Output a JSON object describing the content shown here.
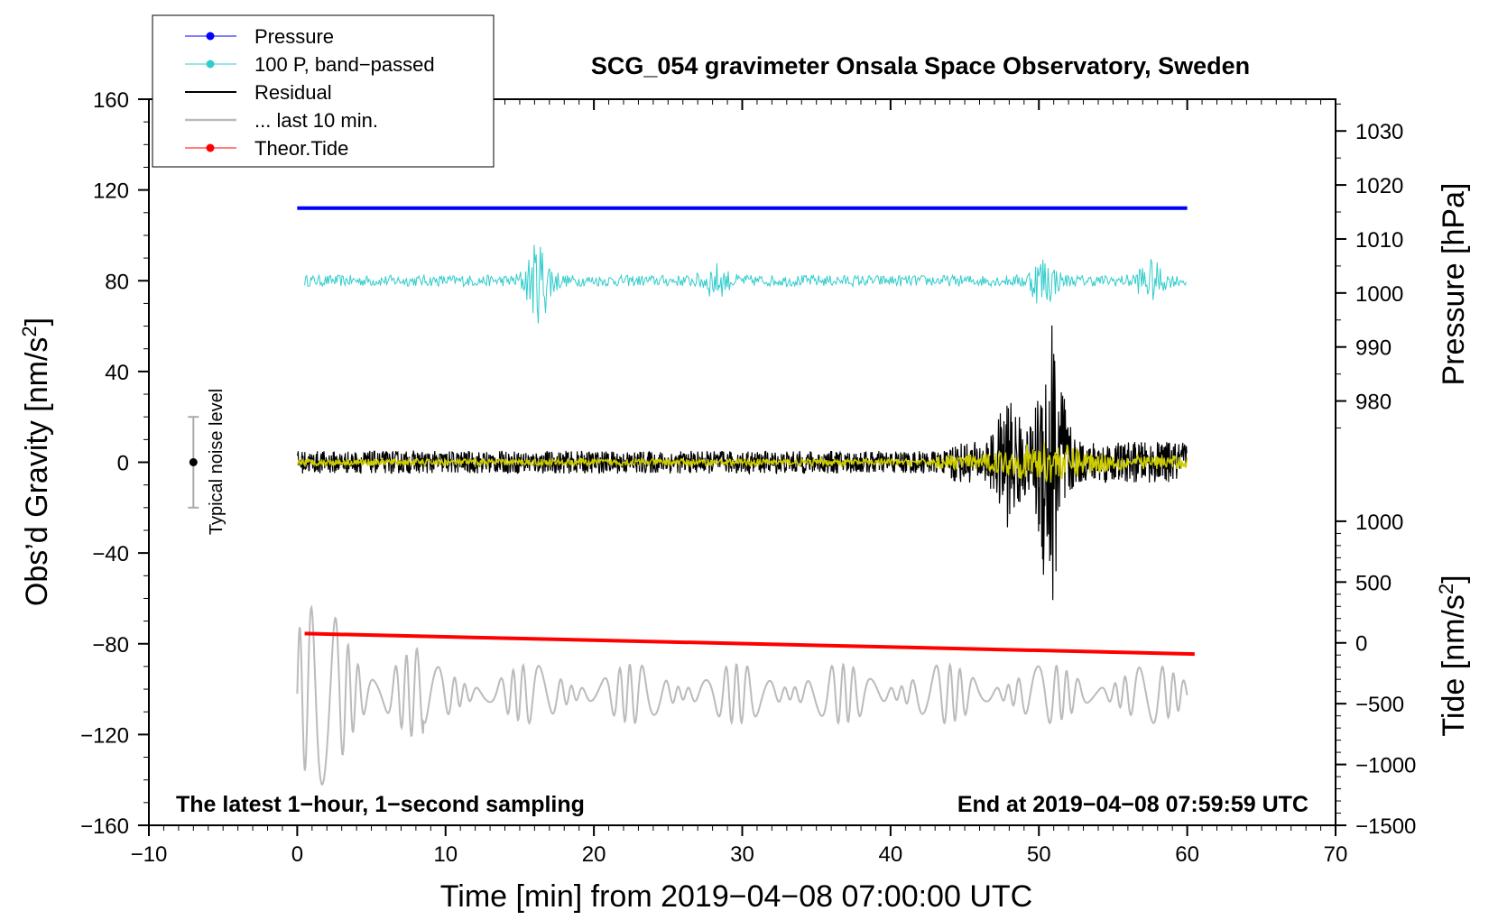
{
  "chart_data": {
    "type": "line",
    "title": "SCG_054 gravimeter Onsala Space Observatory, Sweden",
    "xlabel": "Time [min] from 2019−04−08 07:00:00 UTC",
    "ylabel_left": "Obs’d Gravity [nm/s",
    "ylabel_left_sup": "2",
    "ylabel_left_end": "]",
    "ylabel_pressure": "Pressure [hPa]",
    "ylabel_tide": "Tide [nm/s",
    "ylabel_tide_sup": "2",
    "ylabel_tide_end": "]",
    "xlim": [
      -10,
      70
    ],
    "ylim": [
      -160,
      160
    ],
    "x_ticks": [
      "−10",
      "0",
      "10",
      "20",
      "30",
      "40",
      "50",
      "60",
      "70"
    ],
    "x_tick_values": [
      -10,
      0,
      10,
      20,
      30,
      40,
      50,
      60,
      70
    ],
    "y_ticks": [
      "160",
      "120",
      "80",
      "40",
      "0",
      "−40",
      "−80",
      "−120",
      "−160"
    ],
    "y_tick_values": [
      160,
      120,
      80,
      40,
      0,
      -40,
      -80,
      -120,
      -160
    ],
    "pressure_ticks": [
      "1030",
      "1020",
      "1010",
      "1000",
      "990",
      "980"
    ],
    "pressure_tick_values": [
      1030,
      1020,
      1010,
      1000,
      990,
      980
    ],
    "pressure_range_hpa": [
      1030,
      980
    ],
    "pressure_range_gravity": [
      146,
      27
    ],
    "tide_ticks": [
      "1000",
      "500",
      "0",
      "−500",
      "−1000",
      "−1500"
    ],
    "tide_tick_values": [
      1000,
      500,
      0,
      -500,
      -1000,
      -1500
    ],
    "tide_range_nms2": [
      1000,
      -1500
    ],
    "tide_range_gravity": [
      -26,
      -160
    ],
    "annotation_left": "The latest 1−hour, 1−second sampling",
    "annotation_right": "End at 2019−04−08 07:59:59 UTC",
    "noise_label": "Typical noise level",
    "noise_level": {
      "x": -7,
      "center": 0,
      "range": [
        -20,
        20
      ]
    },
    "legend": [
      {
        "label": "Pressure",
        "color": "#0000ff",
        "marker": true
      },
      {
        "label": "100 P, band−passed",
        "color": "#33cccc",
        "marker": true
      },
      {
        "label": "Residual",
        "color": "#000000",
        "marker": false
      },
      {
        "label": "... last 10 min.",
        "color": "#bbbbbb",
        "marker": false
      },
      {
        "label": "Theor.Tide",
        "color": "#ff0000",
        "marker": true
      }
    ],
    "series": [
      {
        "name": "Pressure",
        "color": "#0000ff",
        "x_range": [
          0,
          60
        ],
        "values_gravity_units": 112,
        "pressure_hpa": 1016
      },
      {
        "name": "100 P, band−passed",
        "color": "#33cccc",
        "x_range": [
          0.5,
          60
        ],
        "center": 80,
        "events": [
          [
            16.3,
            33
          ],
          [
            50.3,
            20
          ],
          [
            57.5,
            15
          ],
          [
            28.2,
            12
          ]
        ]
      },
      {
        "name": "Residual",
        "color": "#000000",
        "x_range": [
          0,
          60
        ],
        "center": 0,
        "events": [
          [
            50.8,
            60
          ],
          [
            48,
            20
          ]
        ]
      },
      {
        "name": "Residual (yellow overlay)",
        "color": "#cccc00",
        "x_range": [
          0,
          60
        ],
        "center": 0
      },
      {
        "name": "... last 10 min.",
        "color": "#bbbbbb",
        "x_range": [
          0,
          60
        ],
        "center": -102
      },
      {
        "name": "Theor.Tide",
        "color": "#ff0000",
        "x": [
          0.5,
          60.5
        ],
        "values_gravity_units": [
          -75.5,
          -84.5
        ]
      }
    ]
  },
  "colors": {
    "pressure": "#0000ff",
    "bandpass": "#33cccc",
    "residual": "#000000",
    "overlay": "#cccc00",
    "last10": "#bbbbbb",
    "tide": "#ff0000",
    "noise_bar": "#aaaaaa"
  }
}
